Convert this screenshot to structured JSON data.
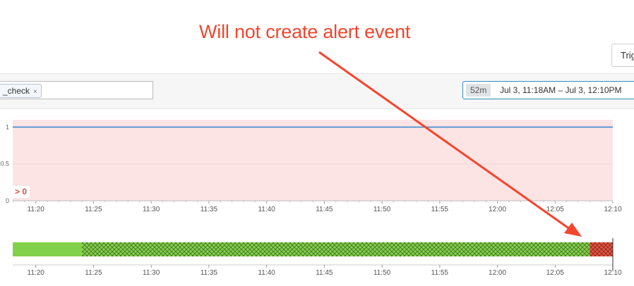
{
  "annotation": {
    "text": "Will not create alert event"
  },
  "header": {
    "trigger_label": "Trig"
  },
  "filter": {
    "tag_label": "_check",
    "tag_remove": "×"
  },
  "time_range": {
    "duration": "52m",
    "text": "Jul 3, 11:18AM – Jul 3, 12:10PM"
  },
  "colors": {
    "alert_fill": "#fde4e4",
    "series": "#3a8ad1",
    "ok": "#82d14a",
    "alert": "#e8523f",
    "annotation": "#f4452d"
  },
  "chart_data": [
    {
      "type": "line",
      "x_ticks": [
        "11:20",
        "11:25",
        "11:30",
        "11:35",
        "11:40",
        "11:45",
        "11:50",
        "11:55",
        "12:00",
        "12:05",
        "12:10"
      ],
      "y_ticks": [
        "0",
        "0.5",
        "1"
      ],
      "ylim": [
        0,
        1.1
      ],
      "threshold_label": "> 0",
      "series": [
        {
          "x": [
            "11:18",
            "12:10"
          ],
          "values": [
            1,
            1
          ]
        }
      ]
    },
    {
      "type": "status_timeline",
      "x_ticks": [
        "11:20",
        "11:25",
        "11:30",
        "11:35",
        "11:40",
        "11:45",
        "11:50",
        "11:55",
        "12:00",
        "12:05",
        "12:10"
      ],
      "segments": [
        {
          "start": "11:18",
          "end": "11:18",
          "state": "alert"
        },
        {
          "start": "11:18",
          "end": "11:24",
          "state": "ok"
        },
        {
          "start": "11:24",
          "end": "12:08",
          "state": "ok",
          "pattern": "hatched"
        },
        {
          "start": "12:08",
          "end": "12:10",
          "state": "alert",
          "pattern": "hatched"
        }
      ]
    }
  ]
}
